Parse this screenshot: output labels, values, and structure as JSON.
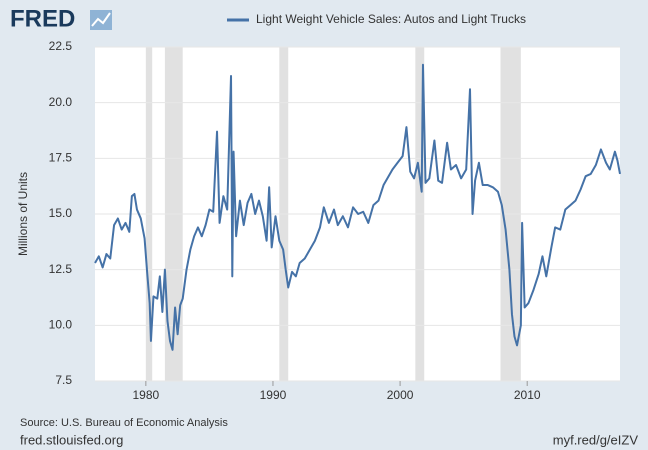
{
  "chart_data": {
    "type": "line",
    "logo": "FRED",
    "ylabel": "Millions of Units",
    "source": "Source: U.S. Bureau of Economic Analysis",
    "footer_left": "fred.stlouisfed.org",
    "footer_right": "myf.red/g/eIZV",
    "xlim": [
      1976,
      2017.3
    ],
    "ylim": [
      7.5,
      22.5
    ],
    "xticks": [
      1980,
      1990,
      2000,
      2010
    ],
    "yticks": [
      7.5,
      {
        "value": 10,
        "label": "10.0"
      },
      12.5,
      {
        "value": 15,
        "label": "15.0"
      },
      17.5,
      {
        "value": 20,
        "label": "20.0"
      },
      22.5
    ],
    "grid": true,
    "recession_color": "#e1e1e1",
    "recessions": [
      [
        1980.0,
        1980.5
      ],
      [
        1981.5,
        1982.9
      ],
      [
        1990.5,
        1991.2
      ],
      [
        2001.2,
        2001.9
      ],
      [
        2007.9,
        2009.5
      ]
    ],
    "x": [
      1976.0,
      1976.3,
      1976.6,
      1976.9,
      1977.2,
      1977.5,
      1977.8,
      1978.1,
      1978.4,
      1978.7,
      1978.9,
      1979.1,
      1979.3,
      1979.6,
      1979.9,
      1980.1,
      1980.3,
      1980.4,
      1980.6,
      1980.9,
      1981.1,
      1981.3,
      1981.5,
      1981.7,
      1981.9,
      1982.1,
      1982.3,
      1982.5,
      1982.7,
      1982.9,
      1983.2,
      1983.5,
      1983.8,
      1984.1,
      1984.4,
      1984.7,
      1985.0,
      1985.3,
      1985.6,
      1985.8,
      1986.1,
      1986.4,
      1986.7,
      1986.8,
      1986.9,
      1987.1,
      1987.4,
      1987.7,
      1988.0,
      1988.3,
      1988.6,
      1988.9,
      1989.2,
      1989.5,
      1989.7,
      1989.9,
      1990.2,
      1990.5,
      1990.8,
      1991.0,
      1991.2,
      1991.5,
      1991.8,
      1992.1,
      1992.5,
      1992.9,
      1993.3,
      1993.7,
      1994.0,
      1994.4,
      1994.8,
      1995.1,
      1995.5,
      1995.9,
      1996.3,
      1996.7,
      1997.1,
      1997.5,
      1997.9,
      1998.3,
      1998.7,
      1999.0,
      1999.4,
      1999.8,
      2000.2,
      2000.5,
      2000.8,
      2001.1,
      2001.4,
      2001.7,
      2001.8,
      2002.0,
      2002.3,
      2002.7,
      2003.0,
      2003.3,
      2003.7,
      2004.0,
      2004.4,
      2004.8,
      2005.2,
      2005.5,
      2005.7,
      2005.9,
      2006.2,
      2006.5,
      2006.9,
      2007.3,
      2007.7,
      2008.0,
      2008.3,
      2008.6,
      2008.8,
      2009.0,
      2009.2,
      2009.5,
      2009.6,
      2009.8,
      2010.1,
      2010.5,
      2010.9,
      2011.2,
      2011.5,
      2011.9,
      2012.2,
      2012.6,
      2013.0,
      2013.4,
      2013.8,
      2014.2,
      2014.6,
      2015.0,
      2015.4,
      2015.8,
      2016.2,
      2016.5,
      2016.9,
      2017.1,
      2017.3
    ],
    "series": [
      {
        "name": "Light Weight Vehicle Sales: Autos and Light Trucks",
        "color": "#4572a7",
        "values": [
          12.8,
          13.1,
          12.6,
          13.2,
          13.0,
          14.5,
          14.8,
          14.3,
          14.6,
          14.2,
          15.8,
          15.9,
          15.2,
          14.8,
          13.9,
          12.4,
          11.0,
          9.3,
          11.3,
          11.2,
          12.2,
          10.6,
          12.5,
          10.2,
          9.3,
          8.9,
          10.8,
          9.6,
          10.9,
          11.2,
          12.5,
          13.4,
          14.0,
          14.4,
          14.0,
          14.5,
          15.2,
          15.1,
          18.7,
          14.6,
          15.8,
          15.2,
          21.2,
          12.2,
          17.8,
          14.0,
          15.6,
          14.5,
          15.5,
          15.9,
          15.0,
          15.6,
          14.9,
          13.8,
          16.2,
          13.5,
          14.9,
          13.8,
          13.4,
          12.5,
          11.7,
          12.4,
          12.2,
          12.8,
          13.0,
          13.4,
          13.8,
          14.4,
          15.3,
          14.6,
          15.2,
          14.5,
          14.9,
          14.4,
          15.3,
          15.0,
          15.1,
          14.6,
          15.4,
          15.6,
          16.3,
          16.6,
          17.0,
          17.3,
          17.6,
          18.9,
          16.9,
          16.6,
          17.3,
          16.0,
          21.7,
          16.4,
          16.6,
          18.3,
          16.5,
          16.4,
          18.2,
          17.0,
          17.2,
          16.6,
          17.0,
          20.6,
          15.0,
          16.5,
          17.3,
          16.3,
          16.3,
          16.2,
          16.0,
          15.4,
          14.3,
          12.5,
          10.5,
          9.5,
          9.1,
          10.0,
          14.6,
          10.8,
          11.0,
          11.6,
          12.3,
          13.1,
          12.2,
          13.5,
          14.4,
          14.3,
          15.2,
          15.4,
          15.6,
          16.1,
          16.7,
          16.8,
          17.2,
          17.9,
          17.3,
          17.0,
          17.8,
          17.4,
          16.8
        ]
      }
    ]
  }
}
